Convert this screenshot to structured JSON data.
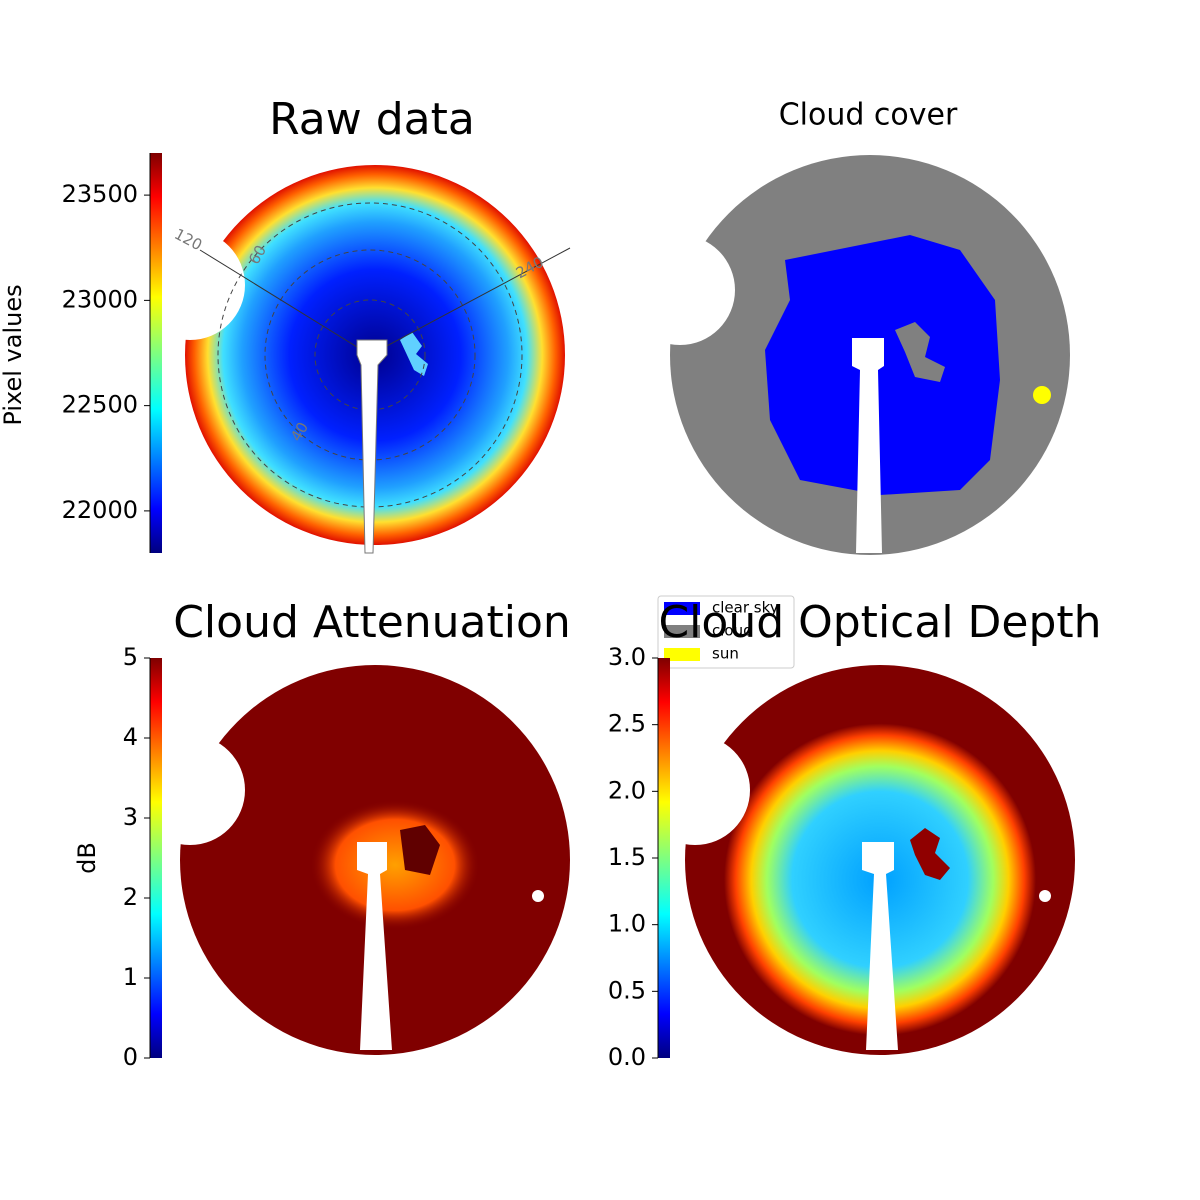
{
  "chart_data": [
    {
      "type": "image",
      "title": "Raw data",
      "colorbar_label": "Pixel values",
      "colormap": "jet",
      "ylim": [
        21800,
        23700
      ],
      "yticks": [
        22000,
        22500,
        23000,
        23500
      ],
      "annotations": [
        "120",
        "240",
        "60",
        "40"
      ]
    },
    {
      "type": "image",
      "title": "Cloud cover",
      "legend": [
        {
          "name": "clear sky",
          "color": "#0000ff"
        },
        {
          "name": "cloud",
          "color": "#808080"
        },
        {
          "name": "sun",
          "color": "#ffff00"
        }
      ]
    },
    {
      "type": "image",
      "title": "Cloud Attenuation",
      "colorbar_label": "dB",
      "colormap": "jet",
      "ylim": [
        0,
        5
      ],
      "yticks": [
        0,
        1,
        2,
        3,
        4,
        5
      ]
    },
    {
      "type": "image",
      "title": "Cloud Optical Depth",
      "colormap": "jet",
      "ylim": [
        0,
        3
      ],
      "yticks": [
        {
          "value": 0,
          "label": "0.0"
        },
        {
          "value": 0.5,
          "label": "0.5"
        },
        {
          "value": 1,
          "label": "1.0"
        },
        {
          "value": 1.5,
          "label": "1.5"
        },
        {
          "value": 2,
          "label": "2.0"
        },
        {
          "value": 2.5,
          "label": "2.5"
        },
        {
          "value": 3,
          "label": "3.0"
        }
      ]
    }
  ]
}
